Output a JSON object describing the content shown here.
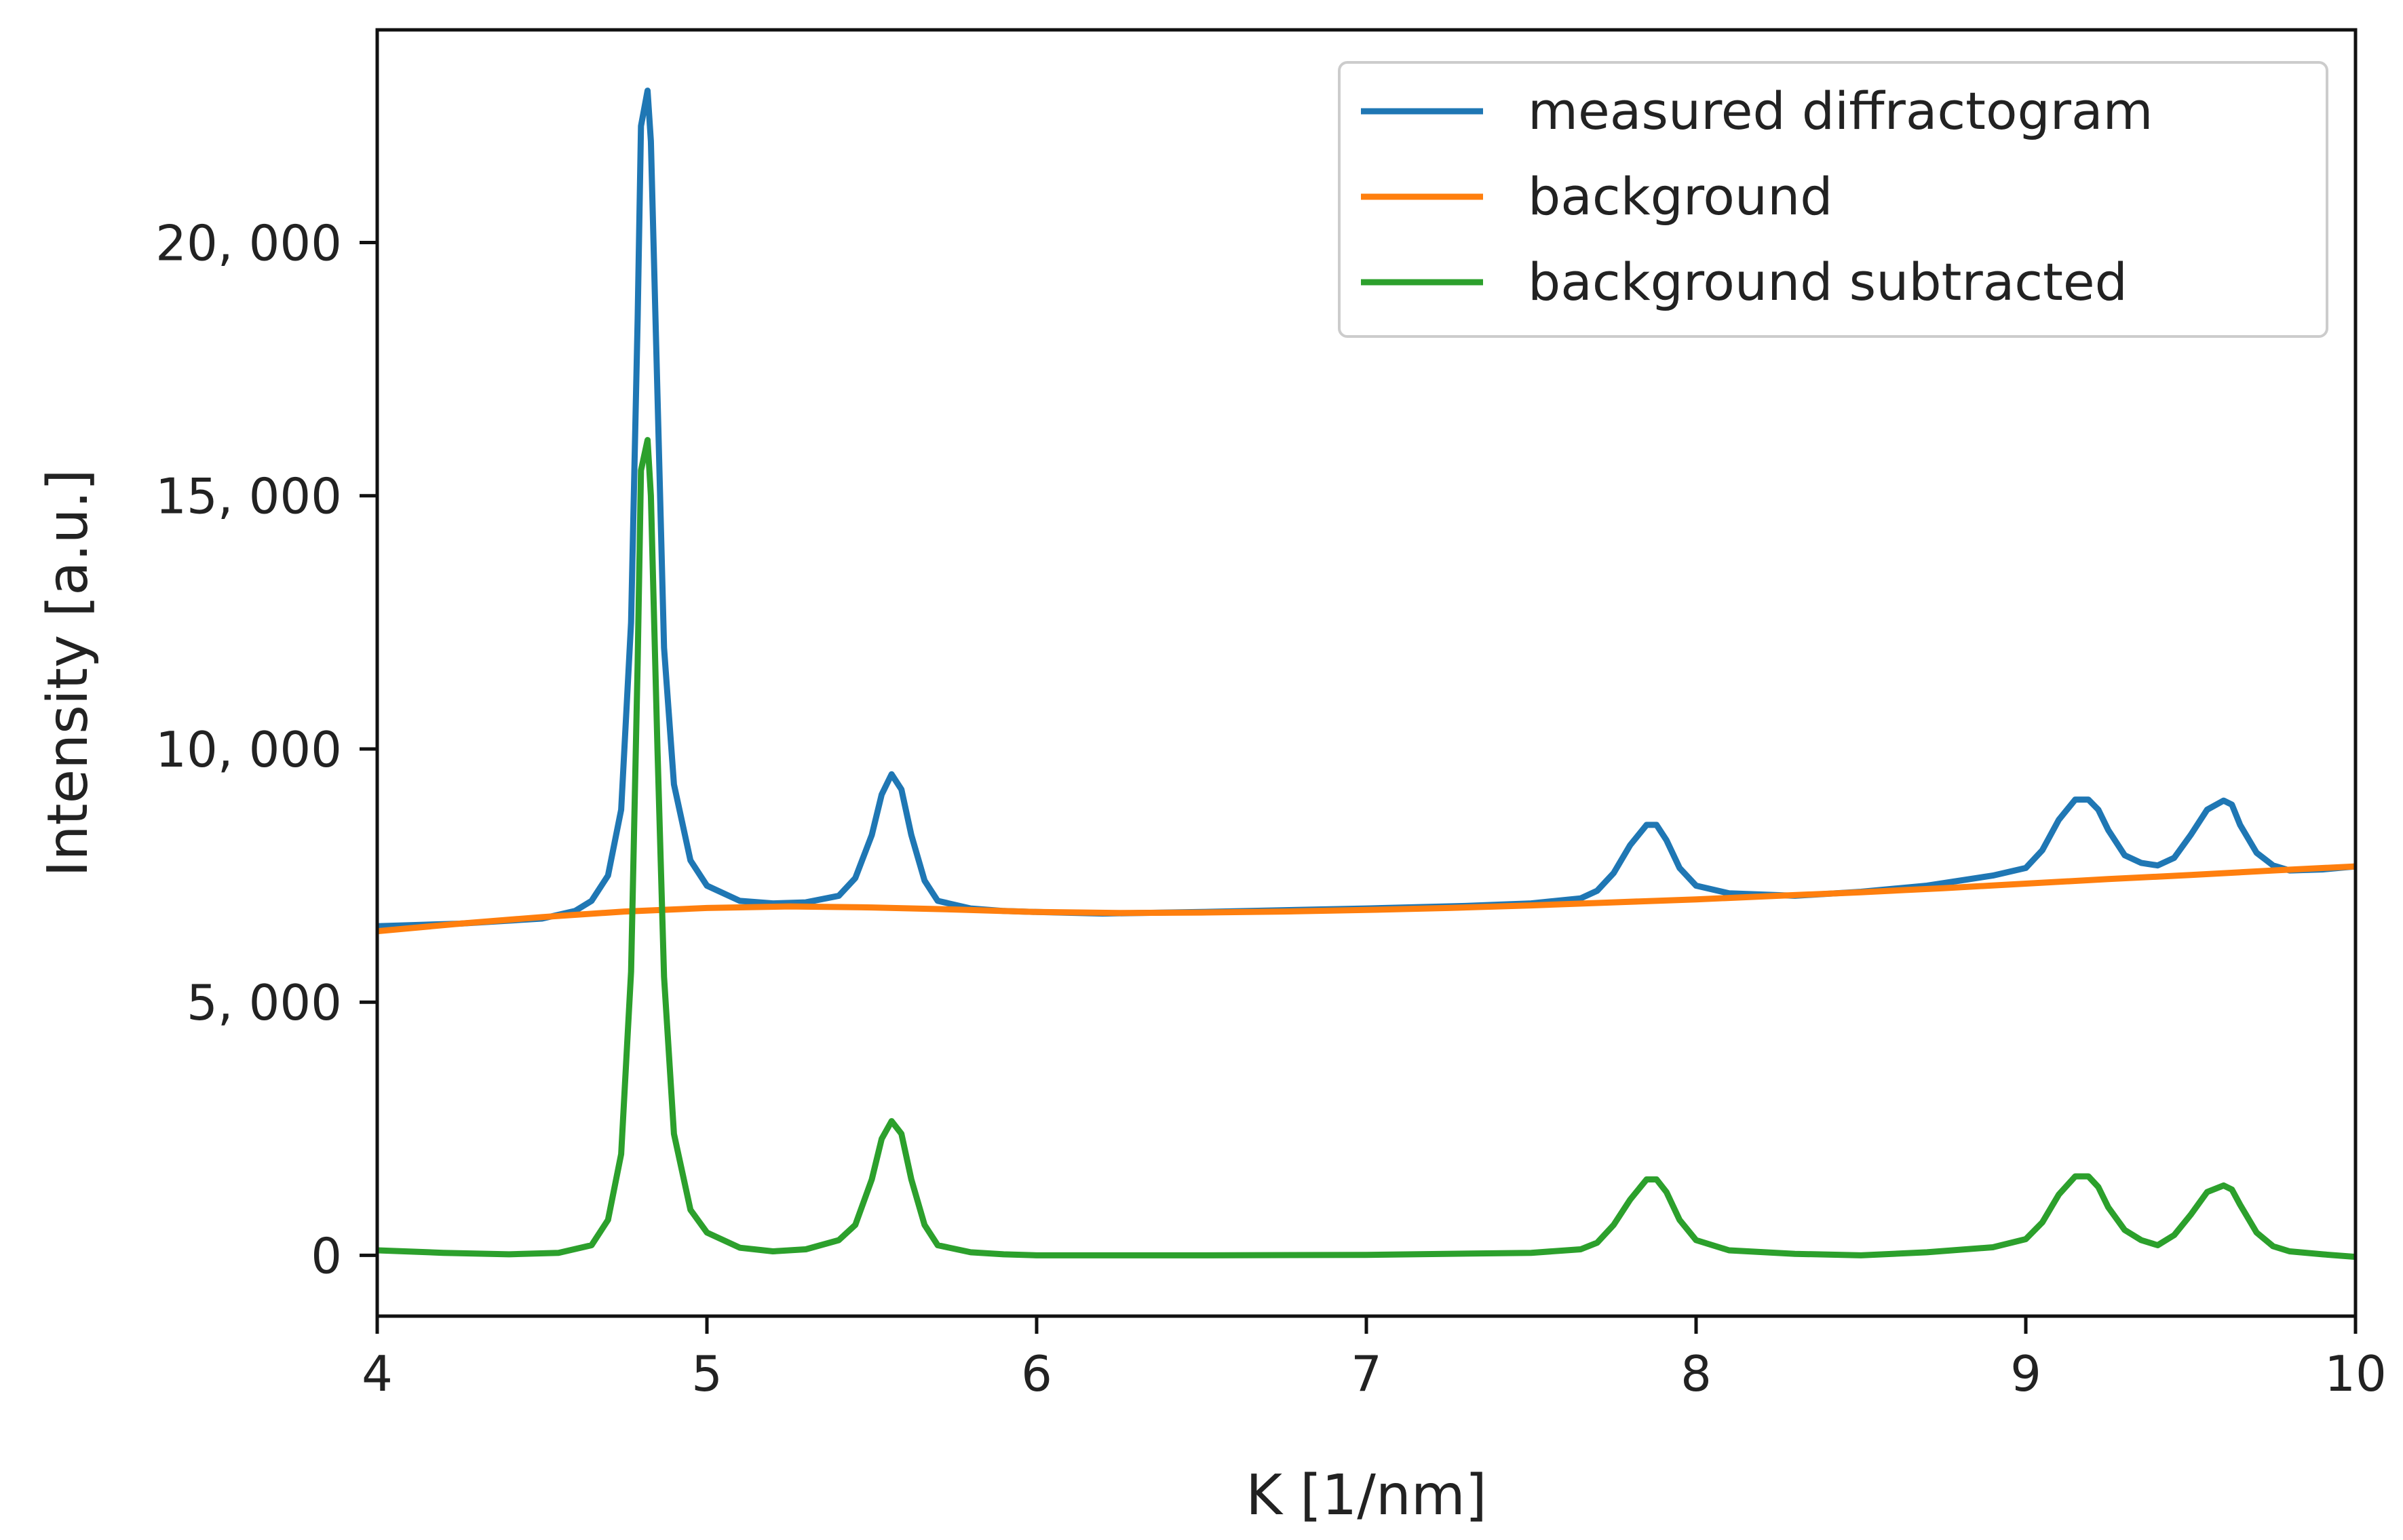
{
  "chart_data": {
    "type": "line",
    "title": "",
    "xlabel": "K [1/nm]",
    "ylabel": "Intensity [a.u.]",
    "xlim": [
      4,
      10
    ],
    "ylim": [
      -1200,
      24200
    ],
    "x_ticks": [
      4,
      5,
      6,
      7,
      8,
      9,
      10
    ],
    "x_tick_labels": [
      "4",
      "5",
      "6",
      "7",
      "8",
      "9",
      "10"
    ],
    "y_ticks": [
      0,
      5000,
      10000,
      15000,
      20000
    ],
    "y_tick_labels": [
      "0",
      "5, 000",
      "10, 000",
      "15, 000",
      "20, 000"
    ],
    "grid": false,
    "legend_position": "top-right",
    "series": [
      {
        "name": "measured diffractogram",
        "color": "#1f77b4",
        "x": [
          4.0,
          4.25,
          4.5,
          4.6,
          4.65,
          4.7,
          4.74,
          4.77,
          4.79,
          4.8,
          4.82,
          4.83,
          4.85,
          4.87,
          4.9,
          4.95,
          5.0,
          5.1,
          5.2,
          5.3,
          5.4,
          5.45,
          5.5,
          5.53,
          5.56,
          5.59,
          5.62,
          5.66,
          5.7,
          5.8,
          5.9,
          6.0,
          6.2,
          6.5,
          7.0,
          7.3,
          7.5,
          7.65,
          7.7,
          7.75,
          7.8,
          7.85,
          7.88,
          7.91,
          7.95,
          8.0,
          8.1,
          8.3,
          8.5,
          8.7,
          8.9,
          9.0,
          9.05,
          9.1,
          9.15,
          9.19,
          9.22,
          9.25,
          9.3,
          9.35,
          9.4,
          9.45,
          9.5,
          9.55,
          9.6,
          9.625,
          9.65,
          9.7,
          9.75,
          9.8,
          9.9,
          10.0
        ],
        "values": [
          6500,
          6550,
          6650,
          6800,
          7000,
          7500,
          8800,
          12500,
          18500,
          22300,
          23000,
          22000,
          17000,
          12000,
          9300,
          7800,
          7300,
          7000,
          6950,
          6970,
          7100,
          7450,
          8300,
          9100,
          9500,
          9200,
          8300,
          7400,
          7000,
          6850,
          6800,
          6780,
          6750,
          6780,
          6850,
          6900,
          6950,
          7050,
          7200,
          7550,
          8100,
          8500,
          8500,
          8200,
          7650,
          7300,
          7150,
          7100,
          7180,
          7300,
          7500,
          7650,
          8000,
          8600,
          9000,
          9000,
          8800,
          8400,
          7900,
          7750,
          7700,
          7850,
          8300,
          8800,
          8980,
          8900,
          8500,
          7950,
          7700,
          7600,
          7620,
          7680
        ]
      },
      {
        "name": "background",
        "color": "#ff7f0e",
        "x": [
          4.0,
          4.25,
          4.5,
          4.75,
          5.0,
          5.25,
          5.5,
          5.75,
          6.0,
          6.25,
          6.5,
          6.75,
          7.0,
          7.25,
          7.5,
          7.75,
          8.0,
          8.25,
          8.5,
          8.75,
          9.0,
          9.25,
          9.5,
          9.75,
          10.0
        ],
        "values": [
          6400,
          6550,
          6680,
          6790,
          6860,
          6890,
          6870,
          6830,
          6780,
          6760,
          6770,
          6790,
          6820,
          6860,
          6910,
          6970,
          7030,
          7100,
          7170,
          7250,
          7340,
          7430,
          7510,
          7600,
          7680
        ]
      },
      {
        "name": "background subtracted",
        "color": "#2ca02c",
        "x": [
          4.0,
          4.2,
          4.4,
          4.55,
          4.65,
          4.7,
          4.74,
          4.77,
          4.79,
          4.8,
          4.82,
          4.83,
          4.85,
          4.87,
          4.9,
          4.95,
          5.0,
          5.1,
          5.2,
          5.3,
          5.4,
          5.45,
          5.5,
          5.53,
          5.56,
          5.59,
          5.62,
          5.66,
          5.7,
          5.8,
          5.9,
          6.0,
          6.5,
          7.0,
          7.5,
          7.65,
          7.7,
          7.75,
          7.8,
          7.85,
          7.88,
          7.91,
          7.95,
          8.0,
          8.1,
          8.3,
          8.5,
          8.7,
          8.9,
          9.0,
          9.05,
          9.1,
          9.15,
          9.19,
          9.22,
          9.25,
          9.3,
          9.35,
          9.4,
          9.45,
          9.5,
          9.55,
          9.6,
          9.625,
          9.65,
          9.7,
          9.75,
          9.8,
          9.9,
          10.0
        ],
        "values": [
          100,
          50,
          20,
          50,
          200,
          700,
          2000,
          5600,
          11700,
          15500,
          16100,
          15000,
          10000,
          5500,
          2400,
          900,
          450,
          150,
          80,
          120,
          300,
          600,
          1500,
          2300,
          2650,
          2400,
          1500,
          600,
          200,
          60,
          20,
          0,
          0,
          10,
          50,
          120,
          250,
          600,
          1100,
          1500,
          1500,
          1250,
          700,
          300,
          100,
          30,
          0,
          60,
          160,
          320,
          650,
          1200,
          1560,
          1560,
          1350,
          950,
          500,
          300,
          200,
          400,
          800,
          1250,
          1380,
          1300,
          1000,
          450,
          180,
          80,
          20,
          -30
        ]
      }
    ]
  }
}
